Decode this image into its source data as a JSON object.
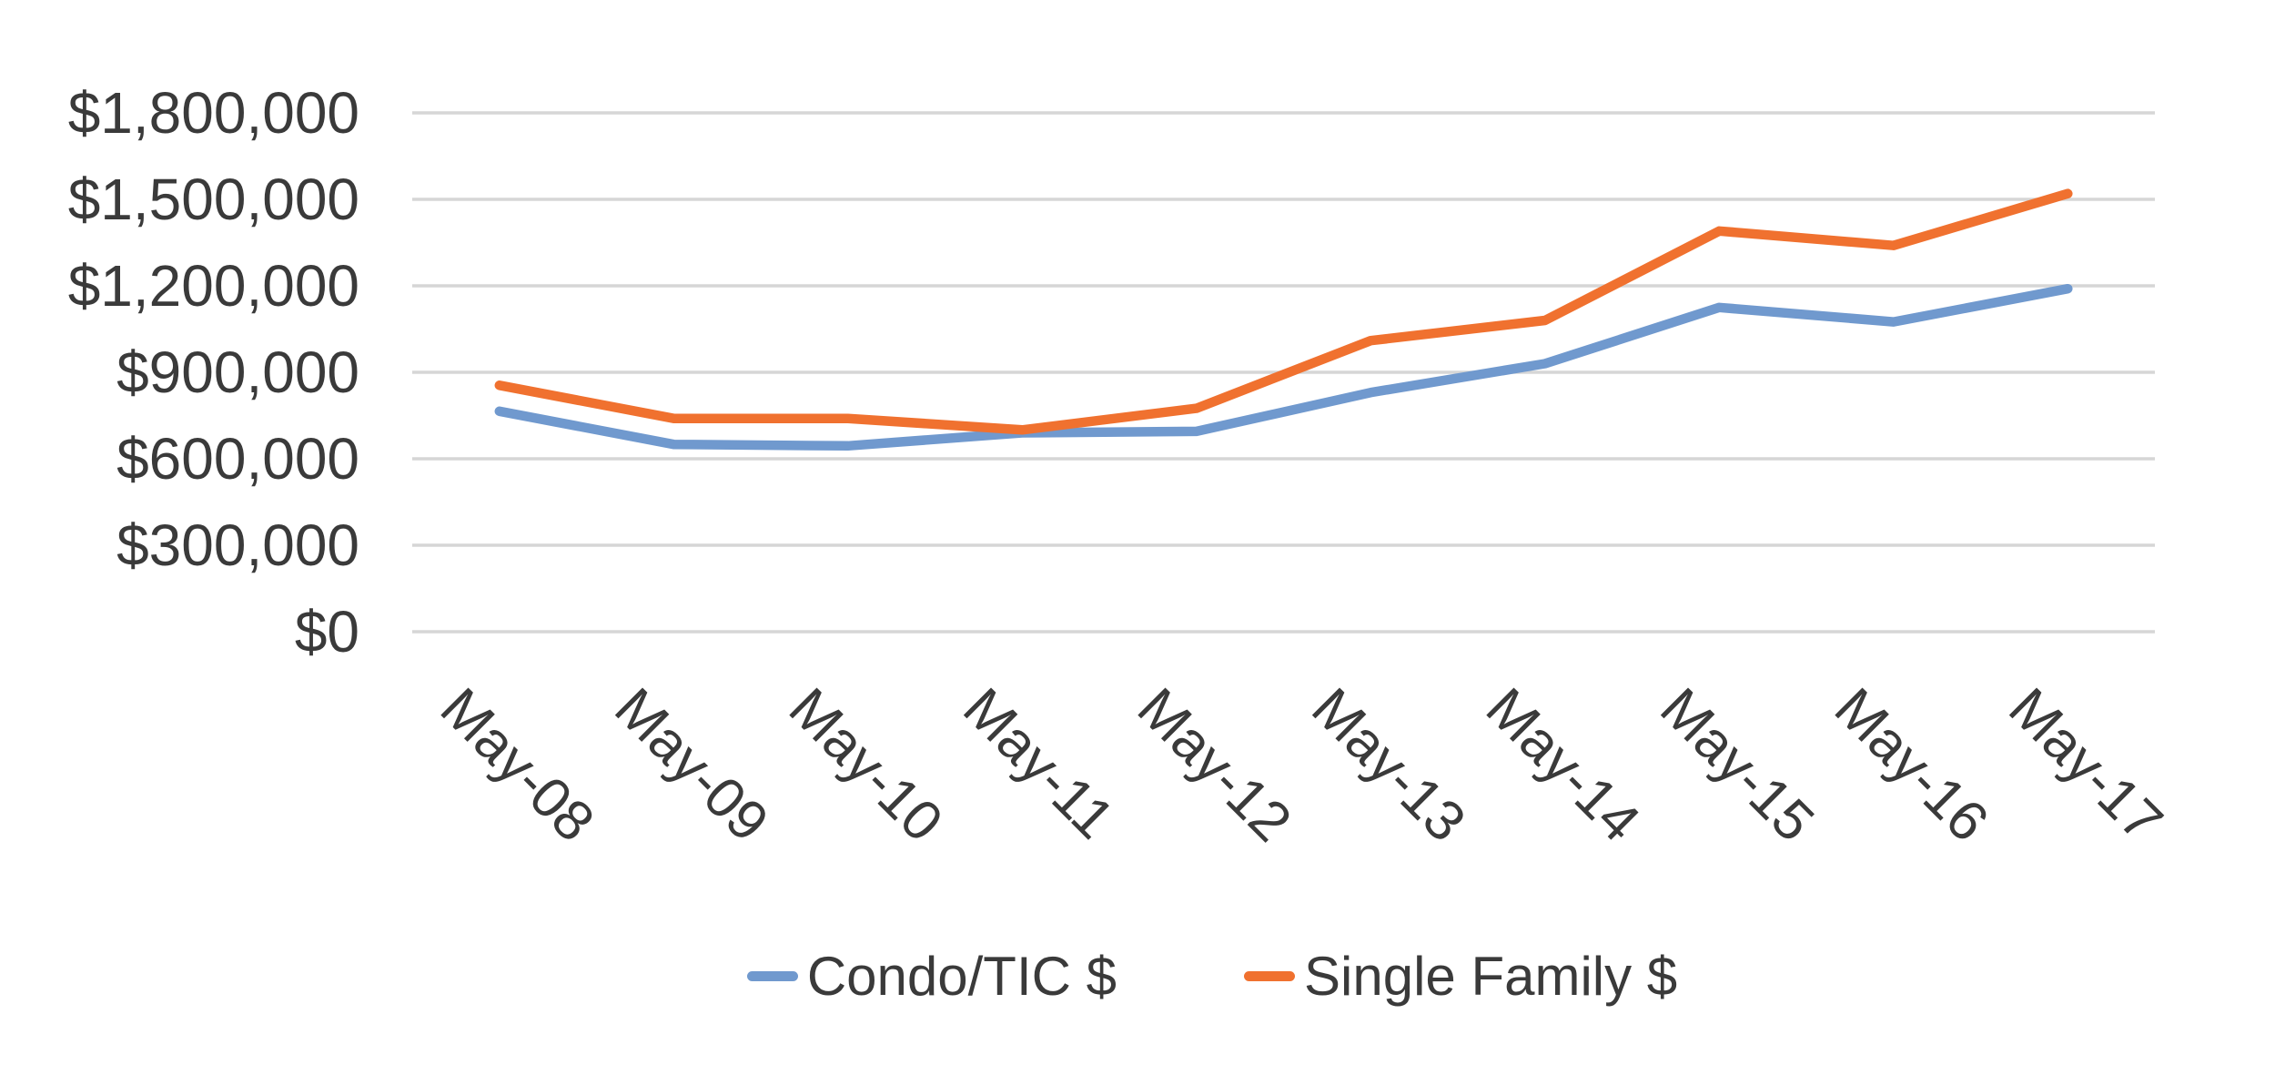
{
  "chart_data": {
    "type": "line",
    "categories": [
      "May-08",
      "May-09",
      "May-10",
      "May-11",
      "May-12",
      "May-13",
      "May-14",
      "May-15",
      "May-16",
      "May-17"
    ],
    "series": [
      {
        "name": "Condo/TIC $",
        "color": "#7099CE",
        "values": [
          765000,
          650000,
          645000,
          690000,
          695000,
          830000,
          930000,
          1125000,
          1075000,
          1190000
        ]
      },
      {
        "name": "Single Family $",
        "color": "#F0712F",
        "values": [
          855000,
          740000,
          740000,
          700000,
          775000,
          1010000,
          1080000,
          1390000,
          1340000,
          1520000
        ]
      }
    ],
    "title": "",
    "xlabel": "",
    "ylabel": "",
    "ylim": [
      0,
      1800000
    ],
    "ytick_step": 300000,
    "ytick_labels": [
      "$0",
      "$300,000",
      "$600,000",
      "$900,000",
      "$1,200,000",
      "$1,500,000",
      "$1,800,000"
    ],
    "grid": true,
    "legend_position": "bottom",
    "x_labels_rotation_deg": 45
  },
  "colors": {
    "background": "#FFFFFF",
    "gridline": "#D6D6D6",
    "axis_text": "#3A3A3A"
  }
}
